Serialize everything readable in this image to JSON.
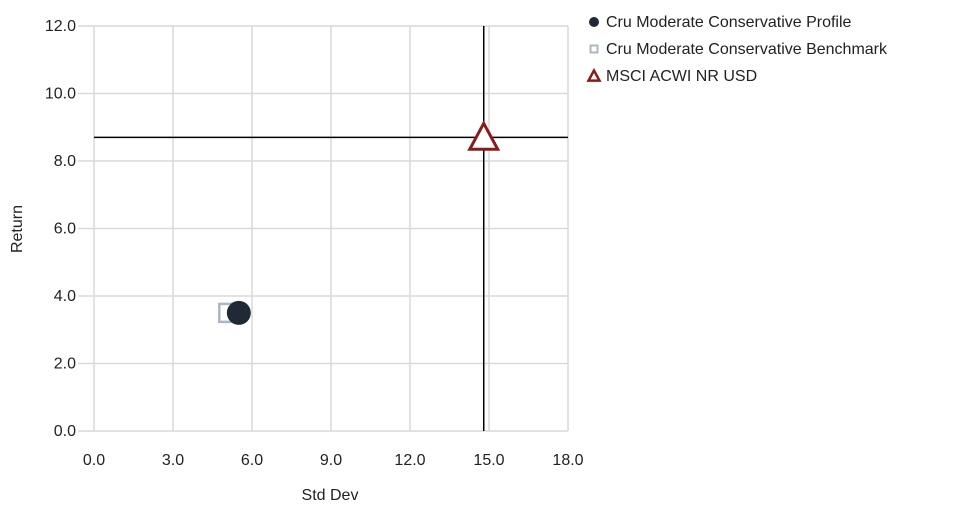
{
  "chart_data": {
    "type": "scatter",
    "xlabel": "Std Dev",
    "ylabel": "Return",
    "xlim": [
      0,
      18
    ],
    "ylim": [
      0,
      12
    ],
    "x_ticks": [
      "0.0",
      "3.0",
      "6.0",
      "9.0",
      "12.0",
      "15.0",
      "18.0"
    ],
    "y_ticks": [
      "0.0",
      "2.0",
      "4.0",
      "6.0",
      "8.0",
      "10.0",
      "12.0"
    ],
    "x_tick_values": [
      0,
      3,
      6,
      9,
      12,
      15,
      18
    ],
    "y_tick_values": [
      0,
      2,
      4,
      6,
      8,
      10,
      12
    ],
    "grid": true,
    "legend_position": "top-right",
    "series": [
      {
        "name": "Cru Moderate Conservative Profile",
        "marker": "circle",
        "color": "#1f2a36",
        "x": 5.5,
        "y": 3.5
      },
      {
        "name": "Cru Moderate Conservative Benchmark",
        "marker": "square",
        "color": "#a9b8c2",
        "x": 5.1,
        "y": 3.5
      },
      {
        "name": "MSCI ACWI NR USD",
        "marker": "triangle",
        "color": "#8b1a1a",
        "x": 14.8,
        "y": 8.7
      }
    ],
    "reference_lines": {
      "x": 14.8,
      "y": 8.7
    }
  }
}
